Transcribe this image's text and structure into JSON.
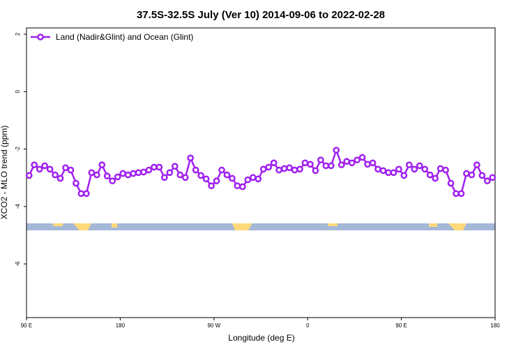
{
  "chart_data": {
    "type": "line",
    "title": "37.5S-32.5S July (Ver 10)   2014-09-06 to 2022-02-28",
    "x_label": "Longitude (deg E)",
    "y_label": "XCO2 - MLO trend (ppm)",
    "xlim": [
      90,
      540
    ],
    "ylim": [
      -7.87,
      2.22
    ],
    "xticks": [
      {
        "value": 90,
        "label": "90 E"
      },
      {
        "value": 180,
        "label": "180"
      },
      {
        "value": 270,
        "label": "90 W"
      },
      {
        "value": 360,
        "label": "0"
      },
      {
        "value": 450,
        "label": "90 E"
      },
      {
        "value": 540,
        "label": "180"
      }
    ],
    "yticks": [
      2,
      0,
      -2,
      -4,
      -6
    ],
    "legend": "top-left",
    "x": [
      92.5,
      97.5,
      102.5,
      107.5,
      112.5,
      117.5,
      122.5,
      127.5,
      132.5,
      137.5,
      142.5,
      147.5,
      152.5,
      157.5,
      162.5,
      167.5,
      172.5,
      177.5,
      182.5,
      187.5,
      192.5,
      197.5,
      202.5,
      207.5,
      212.5,
      217.5,
      222.5,
      227.5,
      232.5,
      237.5,
      242.5,
      247.5,
      252.5,
      257.5,
      262.5,
      267.5,
      272.5,
      277.5,
      282.5,
      287.5,
      292.5,
      297.5,
      302.5,
      307.5,
      312.5,
      317.5,
      322.5,
      327.5,
      332.5,
      337.5,
      342.5,
      347.5,
      352.5,
      357.5,
      362.5,
      367.5,
      372.5,
      377.5,
      382.5,
      387.5,
      392.5,
      397.5,
      402.5,
      407.5,
      412.5,
      417.5,
      422.5,
      427.5,
      432.5,
      437.5,
      442.5,
      447.5,
      452.5,
      457.5,
      462.5,
      467.5,
      472.5,
      477.5,
      482.5,
      487.5,
      492.5,
      497.5,
      502.5,
      507.5,
      512.5,
      517.5,
      522.5,
      527.5,
      532.5,
      537.5
    ],
    "series": [
      {
        "name": "Land (Nadir&Glint) and Ocean (Glint)",
        "color": "#a020f0",
        "values": [
          -2.92,
          -2.55,
          -2.7,
          -2.58,
          -2.7,
          -2.9,
          -3.02,
          -2.65,
          -2.73,
          -3.19,
          -3.55,
          -3.55,
          -2.82,
          -2.9,
          -2.55,
          -2.94,
          -3.11,
          -2.97,
          -2.85,
          -2.9,
          -2.85,
          -2.82,
          -2.8,
          -2.73,
          -2.63,
          -2.63,
          -2.99,
          -2.82,
          -2.6,
          -2.9,
          -2.99,
          -2.31,
          -2.73,
          -2.92,
          -3.04,
          -3.28,
          -3.11,
          -2.73,
          -2.9,
          -3.02,
          -3.28,
          -3.31,
          -3.07,
          -2.99,
          -3.04,
          -2.7,
          -2.63,
          -2.48,
          -2.73,
          -2.68,
          -2.65,
          -2.73,
          -2.7,
          -2.48,
          -2.53,
          -2.75,
          -2.38,
          -2.58,
          -2.58,
          -2.04,
          -2.55,
          -2.43,
          -2.48,
          -2.38,
          -2.29,
          -2.53,
          -2.48,
          -2.7,
          -2.75,
          -2.82,
          -2.82,
          -2.7,
          -2.92,
          -2.55,
          -2.7,
          -2.58,
          -2.7,
          -2.9,
          -3.02,
          -2.68,
          -2.73,
          -3.19,
          -3.55,
          -3.55,
          -2.85,
          -2.9,
          -2.55,
          -2.92,
          -3.11,
          -2.99
        ]
      }
    ]
  }
}
